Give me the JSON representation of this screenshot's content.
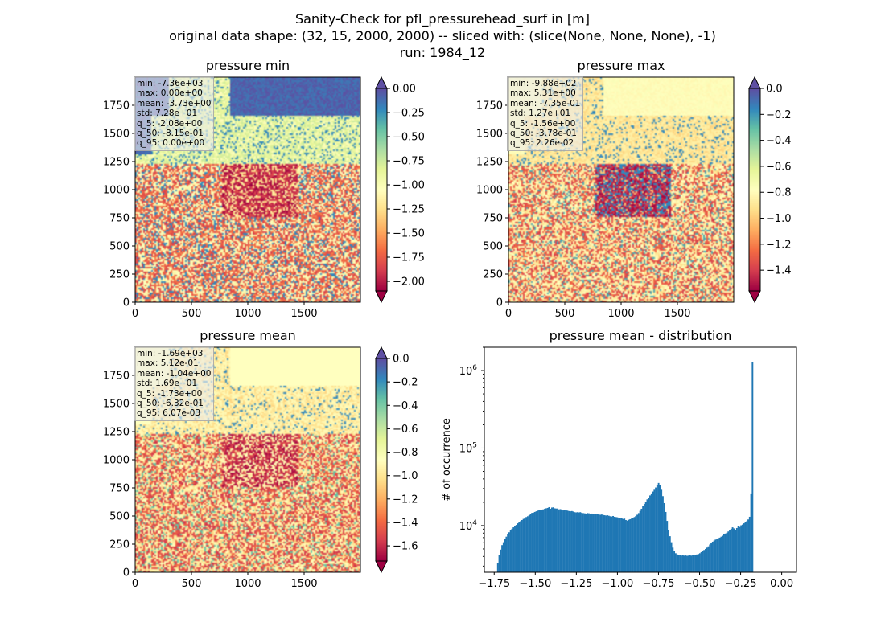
{
  "figure": {
    "title_lines": [
      "Sanity-Check for pfl_pressurehead_surf in [m]",
      "original data shape: (32, 15, 2000, 2000) -- sliced with: (slice(None, None, None), -1)",
      "run: 1984_12"
    ]
  },
  "chart_data": [
    {
      "type": "heatmap",
      "title": "pressure min",
      "xlim": [
        0,
        2000
      ],
      "ylim": [
        0,
        2000
      ],
      "xticks": [
        "0",
        "500",
        "1000",
        "1500"
      ],
      "yticks": [
        "0",
        "250",
        "500",
        "750",
        "1000",
        "1250",
        "1500",
        "1750"
      ],
      "colormap": "Spectral",
      "colorbar": {
        "min": -2.1,
        "max": 0.0,
        "extend": "both",
        "ticks": [
          "0.00",
          "-0.25",
          "-0.50",
          "-0.75",
          "-1.00",
          "-1.25",
          "-1.50",
          "-1.75",
          "-2.00"
        ],
        "tick_values": [
          0,
          -0.25,
          -0.5,
          -0.75,
          -1.0,
          -1.25,
          -1.5,
          -1.75,
          -2.0
        ]
      },
      "stats": [
        "min: -7.36e+03",
        "max: 0.00e+00",
        "mean: -3.73e+00",
        "std: 7.28e+01",
        "q_5: -2.08e+00",
        "q_50: -8.15e-01",
        "q_95: 0.00e+00"
      ]
    },
    {
      "type": "heatmap",
      "title": "pressure max",
      "xlim": [
        0,
        2000
      ],
      "ylim": [
        0,
        2000
      ],
      "xticks": [
        "0",
        "500",
        "1000",
        "1500"
      ],
      "yticks": [
        "0",
        "250",
        "500",
        "750",
        "1000",
        "1250",
        "1500",
        "1750"
      ],
      "colormap": "Spectral",
      "colorbar": {
        "min": -1.56,
        "max": 0.0,
        "extend": "both",
        "ticks": [
          "0.0",
          "-0.2",
          "-0.4",
          "-0.6",
          "-0.8",
          "-1.0",
          "-1.2",
          "-1.4"
        ],
        "tick_values": [
          0,
          -0.2,
          -0.4,
          -0.6,
          -0.8,
          -1.0,
          -1.2,
          -1.4
        ]
      },
      "stats": [
        "min: -9.88e+02",
        "max: 5.31e+00",
        "mean: -7.35e-01",
        "std: 1.27e+01",
        "q_5: -1.56e+00",
        "q_50: -3.78e-01",
        "q_95: 2.26e-02"
      ]
    },
    {
      "type": "heatmap",
      "title": "pressure mean",
      "xlim": [
        0,
        2000
      ],
      "ylim": [
        0,
        2000
      ],
      "xticks": [
        "0",
        "500",
        "1000",
        "1500"
      ],
      "yticks": [
        "0",
        "250",
        "500",
        "750",
        "1000",
        "1250",
        "1500",
        "1750"
      ],
      "colormap": "Spectral",
      "colorbar": {
        "min": -1.73,
        "max": 0.0,
        "extend": "both",
        "ticks": [
          "0.0",
          "-0.2",
          "-0.4",
          "-0.6",
          "-0.8",
          "-1.0",
          "-1.2",
          "-1.4",
          "-1.6"
        ],
        "tick_values": [
          0,
          -0.2,
          -0.4,
          -0.6,
          -0.8,
          -1.0,
          -1.2,
          -1.4,
          -1.6
        ]
      },
      "stats": [
        "min: -1.69e+03",
        "max: 5.12e-01",
        "mean: -1.04e+00",
        "std: 1.69e+01",
        "q_5: -1.73e+00",
        "q_50: -6.32e-01",
        "q_95: 6.07e-03"
      ]
    },
    {
      "type": "bar",
      "subtype": "histogram",
      "title": "pressure mean - distribution",
      "xlabel": "",
      "ylabel": "# of occurrence",
      "yscale": "log",
      "xlim": [
        -1.81,
        0.09
      ],
      "ylim": [
        2500,
        2000000
      ],
      "xticks": [
        -1.75,
        -1.5,
        -1.25,
        -1.0,
        -0.75,
        -0.5,
        -0.25,
        0.0
      ],
      "xtick_labels": [
        "−1.75",
        "−1.50",
        "−1.25",
        "−1.00",
        "−0.75",
        "−0.50",
        "−0.25",
        "0.00"
      ],
      "yticks": [
        10000,
        100000,
        1000000
      ],
      "ytick_labels": [
        "10",
        "10",
        "10"
      ],
      "ytick_exponents": [
        "4",
        "5",
        "6"
      ],
      "color": "#1f77b4",
      "bin_start": -1.7325,
      "bin_width": 0.00866,
      "counts": [
        3300,
        4200,
        4900,
        5600,
        6100,
        6700,
        7200,
        7700,
        8200,
        8700,
        9100,
        9500,
        9800,
        10200,
        10700,
        11000,
        11400,
        11800,
        12200,
        12600,
        12900,
        13200,
        13600,
        14000,
        14600,
        14700,
        15000,
        15300,
        15600,
        15800,
        16000,
        16100,
        16200,
        16500,
        16700,
        16900,
        17300,
        16500,
        17100,
        17200,
        16700,
        16600,
        16600,
        16200,
        16300,
        15900,
        15700,
        16000,
        15800,
        15600,
        15400,
        15300,
        15400,
        15200,
        14900,
        14800,
        14900,
        14800,
        14900,
        14600,
        14500,
        14400,
        14300,
        14500,
        14400,
        14200,
        14300,
        14100,
        14100,
        14000,
        14100,
        13900,
        13800,
        13900,
        13700,
        13600,
        13500,
        13600,
        13400,
        13200,
        13100,
        13300,
        13000,
        12900,
        12800,
        12600,
        12400,
        12500,
        12200,
        12300,
        11800,
        11600,
        11900,
        12100,
        12300,
        12600,
        12900,
        13300,
        13800,
        14500,
        15500,
        16500,
        17800,
        19000,
        20300,
        21800,
        23000,
        24500,
        26000,
        27500,
        29000,
        31000,
        33500,
        35500,
        33000,
        29000,
        24000,
        19500,
        15000,
        11500,
        8800,
        7300,
        6100,
        5200,
        4700,
        4400,
        4250,
        4150,
        4200,
        4100,
        4150,
        4100,
        4120,
        4080,
        4100,
        4150,
        4100,
        4200,
        4150,
        4220,
        4250,
        4300,
        4400,
        4550,
        4700,
        4850,
        5000,
        5200,
        5400,
        5700,
        5900,
        6200,
        6400,
        6600,
        6700,
        6900,
        7000,
        7200,
        7400,
        7700,
        7900,
        8100,
        8400,
        8700,
        9100,
        9500,
        9200,
        8800,
        9300,
        9800,
        9600,
        10100,
        10300,
        10700,
        11000,
        11400,
        12000,
        13000,
        26000,
        1300000
      ]
    }
  ]
}
